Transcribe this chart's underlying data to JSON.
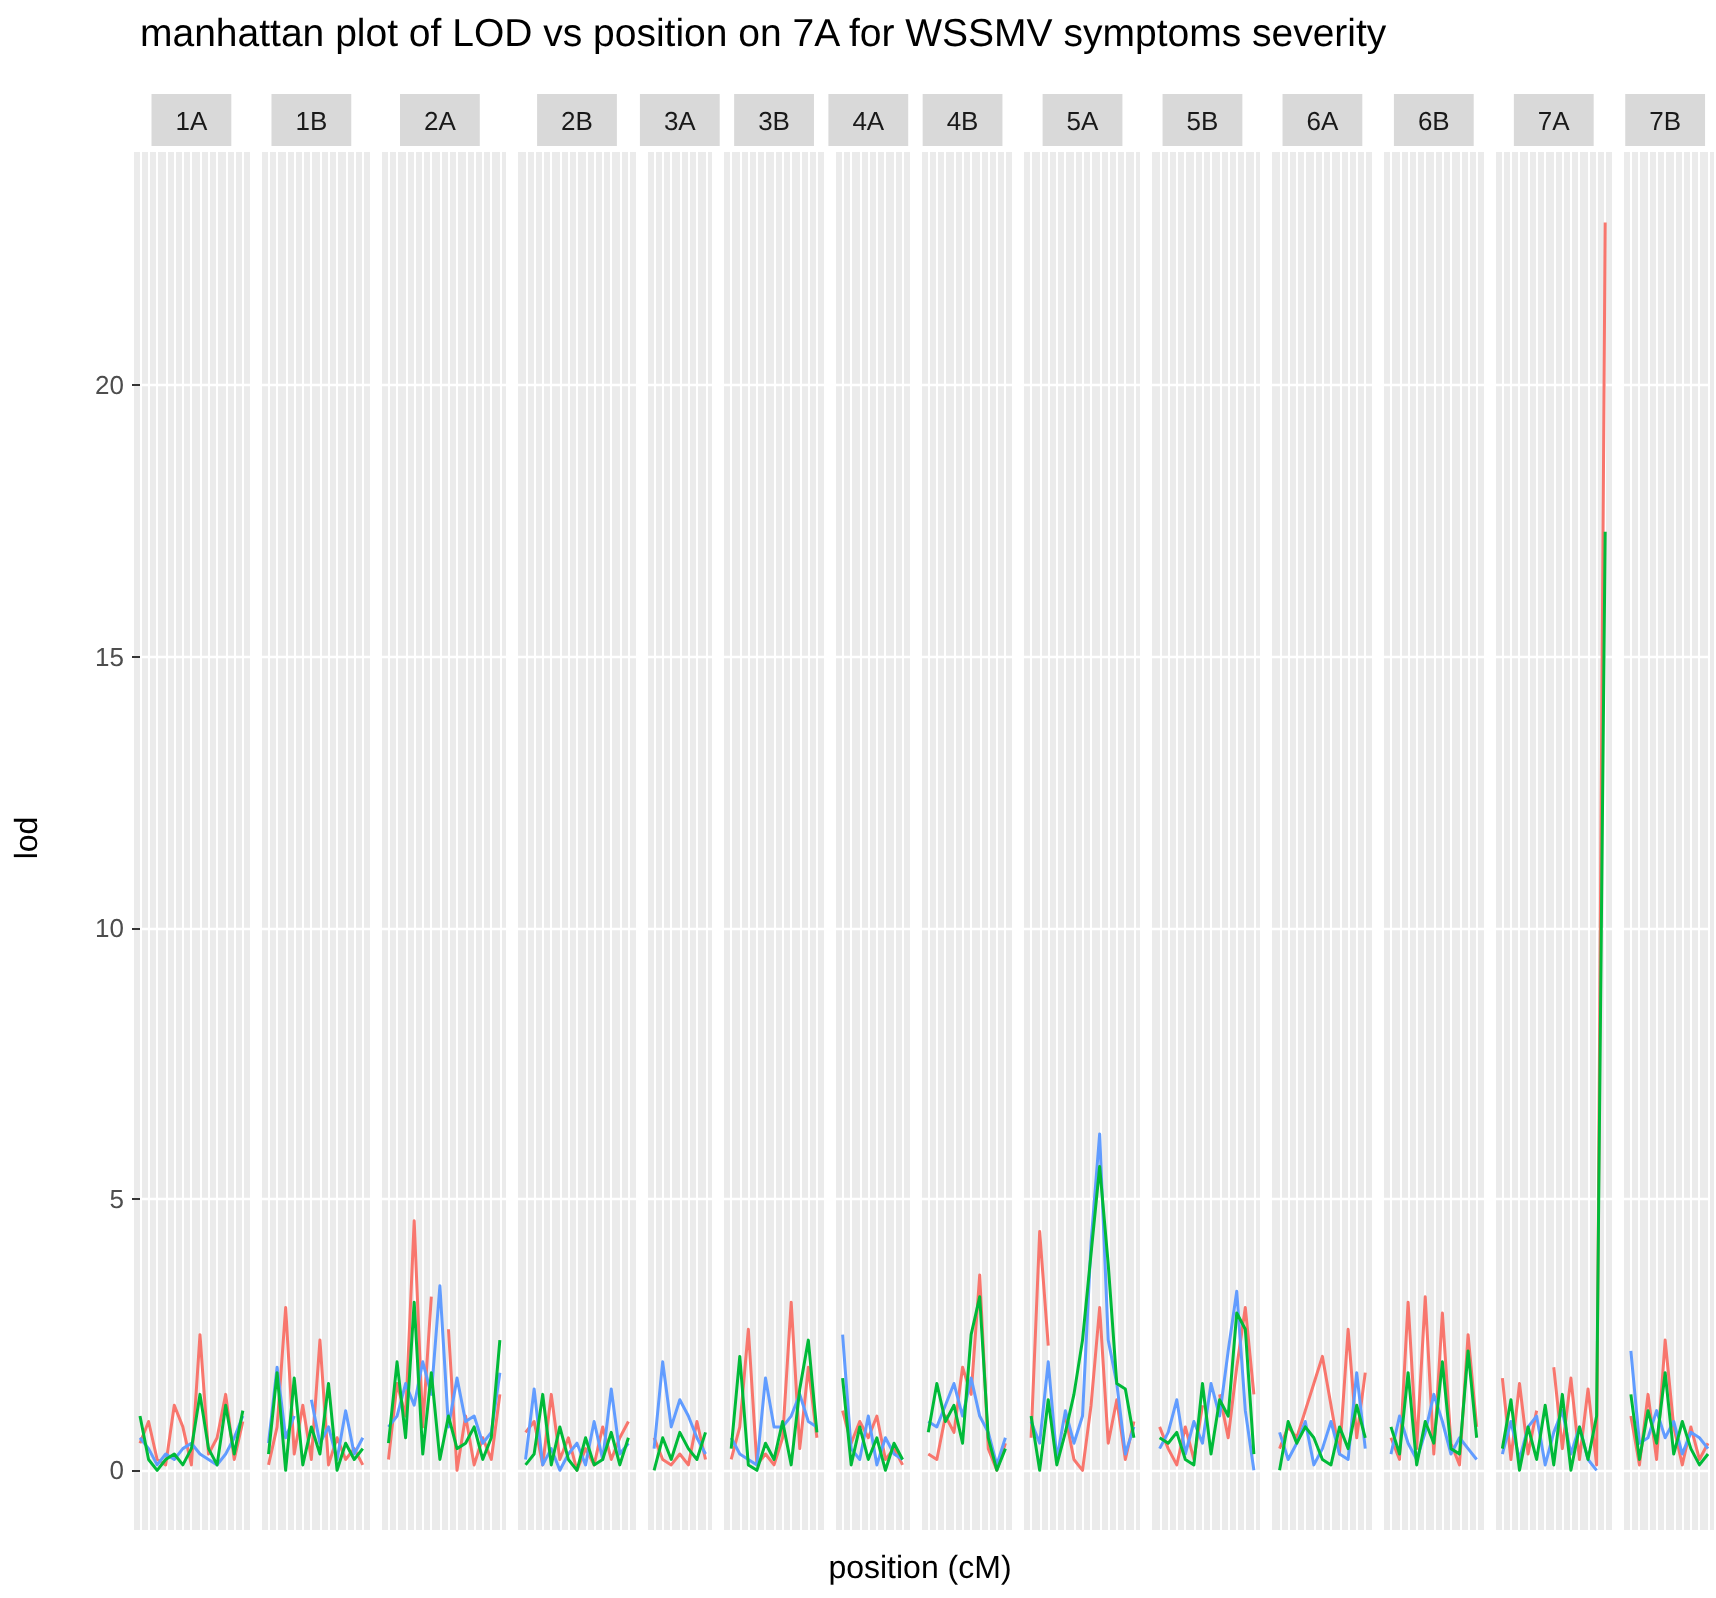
{
  "chart_data": {
    "type": "line",
    "title": "manhattan plot of LOD vs position on 7A for WSSMV symptoms severity",
    "xlabel": "position (cM)",
    "ylabel": "lod",
    "grid": true,
    "marker": "none",
    "ylim": [
      -1.1,
      24.3
    ],
    "yticks": [
      0,
      5,
      10,
      15,
      20
    ],
    "categories": [
      null,
      null,
      null,
      null,
      null,
      null,
      "1A",
      null,
      null,
      null,
      null,
      null,
      null,
      null,
      null,
      null,
      null,
      null,
      null,
      null,
      "1B",
      null,
      null,
      null,
      null,
      null,
      null,
      null,
      null,
      null,
      null,
      null,
      null,
      null,
      null,
      "2A",
      null,
      null,
      null,
      null,
      null,
      null,
      null,
      null,
      null,
      null,
      null,
      null,
      null,
      null,
      null,
      "2B",
      null,
      null,
      null,
      null,
      null,
      null,
      null,
      null,
      null,
      null,
      null,
      "3A",
      null,
      null,
      null,
      null,
      null,
      null,
      null,
      null,
      null,
      null,
      "3B",
      null,
      null,
      null,
      null,
      null,
      null,
      null,
      null,
      null,
      null,
      "4A",
      null,
      null,
      null,
      null,
      null,
      null,
      null,
      null,
      null,
      null,
      "4B",
      null,
      null,
      null,
      null,
      null,
      null,
      null,
      null,
      null,
      null,
      null,
      null,
      null,
      "5A",
      null,
      null,
      null,
      null,
      null,
      null,
      null,
      null,
      null,
      null,
      null,
      null,
      null,
      "5B",
      null,
      null,
      null,
      null,
      null,
      null,
      null,
      null,
      null,
      null,
      null,
      null,
      null,
      "6A",
      null,
      null,
      null,
      null,
      null,
      null,
      null,
      null,
      null,
      null,
      null,
      null,
      "6B",
      null,
      null,
      null,
      null,
      null,
      null,
      null,
      null,
      null,
      null,
      null,
      null,
      null,
      "7A",
      null,
      null,
      null,
      null,
      null,
      null,
      null,
      null,
      null,
      null,
      null,
      null,
      "7B",
      null,
      null,
      null,
      null,
      null
    ],
    "series": [
      {
        "color": "#f8766d",
        "values": [
          0.5,
          0.9,
          0.2,
          0.1,
          1.2,
          0.8,
          0.1,
          2.5,
          0.3,
          0.6,
          1.4,
          0.2,
          0.9,
          null,
          null,
          0.1,
          0.8,
          3.0,
          0.3,
          1.2,
          0.2,
          2.4,
          0.1,
          0.6,
          0.2,
          0.4,
          0.1,
          null,
          null,
          0.2,
          1.6,
          1.0,
          4.6,
          0.8,
          3.2,
          null,
          2.6,
          0.0,
          1.0,
          0.1,
          0.6,
          0.2,
          1.4,
          null,
          null,
          0.7,
          0.9,
          0.1,
          1.4,
          0.2,
          0.6,
          0.0,
          0.4,
          0.1,
          0.8,
          0.2,
          0.6,
          0.9,
          null,
          null,
          0.6,
          0.2,
          0.1,
          0.3,
          0.1,
          0.9,
          0.2,
          null,
          null,
          0.2,
          0.8,
          2.6,
          0.1,
          0.3,
          0.1,
          0.6,
          3.1,
          0.4,
          1.9,
          0.6,
          null,
          null,
          1.1,
          0.5,
          0.9,
          0.6,
          1.0,
          0.2,
          0.4,
          0.1,
          null,
          null,
          0.3,
          0.2,
          1.0,
          0.7,
          1.9,
          1.4,
          3.6,
          0.4,
          0.0,
          0.5,
          null,
          null,
          0.6,
          4.4,
          2.3,
          null,
          1.0,
          0.2,
          0.0,
          1.2,
          3.0,
          0.5,
          1.3,
          0.2,
          0.9,
          null,
          null,
          0.8,
          0.4,
          0.1,
          0.8,
          0.2,
          1.2,
          null,
          1.4,
          0.6,
          1.9,
          3.0,
          1.4,
          null,
          null,
          0.4,
          0.8,
          0.6,
          1.1,
          1.6,
          2.1,
          1.2,
          0.3,
          2.6,
          0.6,
          1.8,
          null,
          null,
          0.6,
          0.2,
          3.1,
          0.4,
          3.2,
          0.3,
          2.9,
          0.5,
          0.1,
          2.5,
          0.8,
          null,
          null,
          1.7,
          0.2,
          1.6,
          0.3,
          1.1,
          null,
          1.9,
          0.4,
          1.7,
          0.2,
          1.5,
          0.1,
          23.0,
          null,
          null,
          1.0,
          0.1,
          1.4,
          0.2,
          2.4,
          0.8,
          0.1,
          0.8,
          0.2,
          0.5
        ]
      },
      {
        "color": "#619cff",
        "values": [
          0.6,
          0.4,
          0.1,
          0.3,
          0.2,
          0.4,
          0.5,
          0.3,
          0.2,
          0.1,
          0.3,
          0.6,
          1.0,
          null,
          null,
          0.5,
          1.9,
          0.6,
          1.0,
          null,
          1.3,
          0.5,
          0.8,
          0.2,
          1.1,
          0.3,
          0.6,
          null,
          null,
          0.8,
          1.0,
          1.6,
          1.2,
          2.0,
          1.4,
          3.4,
          0.8,
          1.7,
          0.9,
          1.0,
          0.5,
          0.7,
          1.8,
          null,
          null,
          0.2,
          1.5,
          0.1,
          0.4,
          0.0,
          0.3,
          0.5,
          0.1,
          0.9,
          0.2,
          1.5,
          0.3,
          0.5,
          null,
          null,
          0.4,
          2.0,
          0.8,
          1.3,
          1.0,
          0.6,
          0.3,
          null,
          null,
          0.6,
          0.3,
          0.2,
          0.1,
          1.7,
          0.8,
          0.8,
          1.0,
          1.4,
          0.9,
          0.8,
          null,
          null,
          2.5,
          0.4,
          0.2,
          1.0,
          0.1,
          0.6,
          0.3,
          0.2,
          null,
          null,
          0.9,
          0.8,
          1.2,
          1.6,
          1.0,
          1.7,
          1.0,
          0.7,
          0.1,
          0.6,
          null,
          null,
          0.9,
          0.5,
          2.0,
          0.2,
          1.1,
          0.5,
          1.0,
          4.2,
          6.2,
          2.4,
          1.6,
          0.3,
          0.8,
          null,
          null,
          0.4,
          0.7,
          1.3,
          0.3,
          0.9,
          0.5,
          1.6,
          1.0,
          2.2,
          3.3,
          1.1,
          0.0,
          null,
          null,
          0.7,
          0.2,
          0.5,
          0.9,
          0.1,
          0.4,
          0.9,
          0.3,
          0.2,
          1.8,
          0.4,
          null,
          null,
          0.3,
          1.0,
          0.5,
          0.2,
          0.7,
          1.4,
          0.9,
          0.3,
          0.6,
          0.4,
          0.2,
          null,
          null,
          0.3,
          0.9,
          0.2,
          0.8,
          1.0,
          0.1,
          0.7,
          1.1,
          0.3,
          0.8,
          0.2,
          0.0,
          null,
          null,
          null,
          2.2,
          0.5,
          0.6,
          1.1,
          0.6,
          0.9,
          0.3,
          0.7,
          0.6,
          0.4
        ]
      },
      {
        "color": "#00ba38",
        "values": [
          1.0,
          0.2,
          0.0,
          0.2,
          0.3,
          0.1,
          0.4,
          1.4,
          0.4,
          0.1,
          1.2,
          0.3,
          1.1,
          null,
          null,
          0.3,
          1.8,
          0.0,
          1.7,
          0.1,
          0.8,
          0.3,
          1.6,
          0.0,
          0.5,
          0.2,
          0.4,
          null,
          null,
          0.5,
          2.0,
          0.6,
          3.1,
          0.3,
          1.8,
          0.2,
          1.0,
          0.4,
          0.5,
          0.8,
          0.2,
          0.6,
          2.4,
          null,
          null,
          0.1,
          0.3,
          1.4,
          0.1,
          0.8,
          0.2,
          0.0,
          0.6,
          0.1,
          0.2,
          0.7,
          0.1,
          0.6,
          null,
          null,
          0.0,
          0.6,
          0.2,
          0.7,
          0.4,
          0.2,
          0.7,
          null,
          null,
          0.4,
          2.1,
          0.1,
          0.0,
          0.5,
          0.2,
          0.9,
          0.1,
          1.5,
          2.4,
          0.7,
          null,
          null,
          1.7,
          0.1,
          0.8,
          0.2,
          0.6,
          0.0,
          0.5,
          0.2,
          null,
          null,
          0.7,
          1.6,
          0.9,
          1.2,
          0.5,
          2.5,
          3.2,
          0.6,
          0.0,
          0.4,
          null,
          null,
          1.0,
          0.0,
          1.3,
          0.1,
          0.7,
          1.4,
          2.4,
          4.0,
          5.6,
          3.8,
          1.6,
          1.5,
          0.6,
          null,
          null,
          0.6,
          0.5,
          0.7,
          0.2,
          0.1,
          1.6,
          0.3,
          1.3,
          1.0,
          2.9,
          2.6,
          0.3,
          null,
          null,
          0.0,
          0.9,
          0.5,
          0.8,
          0.6,
          0.2,
          0.1,
          0.8,
          0.4,
          1.2,
          0.6,
          null,
          null,
          0.8,
          0.3,
          1.8,
          0.1,
          0.9,
          0.5,
          2.0,
          0.4,
          0.3,
          2.2,
          0.6,
          null,
          null,
          0.4,
          1.3,
          0.0,
          0.8,
          0.2,
          1.2,
          0.1,
          1.4,
          0.0,
          0.8,
          0.2,
          1.0,
          17.3,
          null,
          null,
          1.4,
          0.2,
          1.1,
          0.5,
          1.8,
          0.3,
          0.9,
          0.4,
          0.1,
          0.3
        ]
      }
    ]
  }
}
